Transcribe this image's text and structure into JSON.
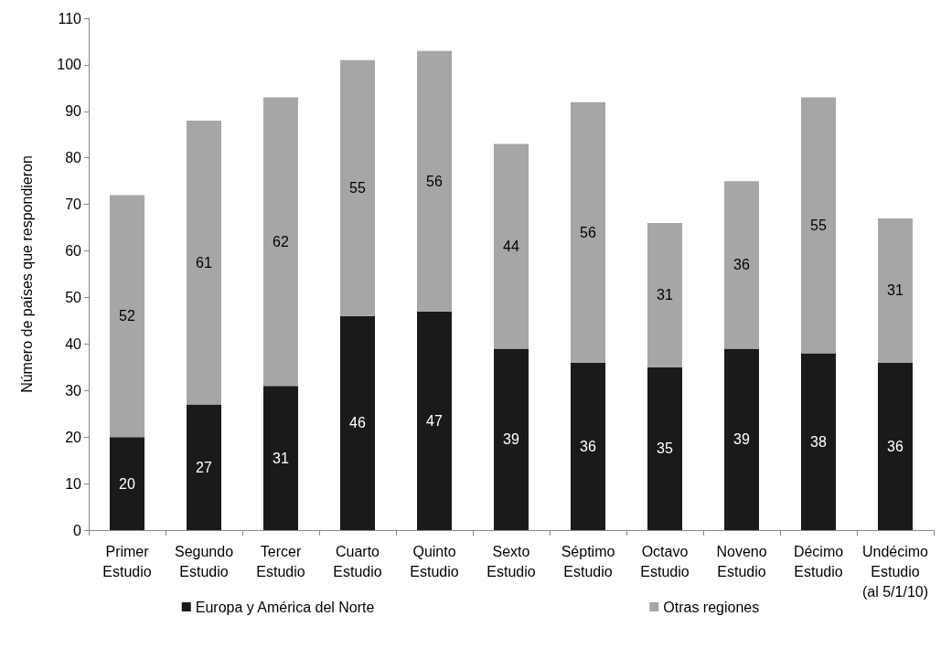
{
  "chart_data": {
    "type": "bar",
    "stacked": true,
    "ylabel": "Número de países que respondieron",
    "categories": [
      "Primer\nEstudio",
      "Segundo\nEstudio",
      "Tercer\nEstudio",
      "Cuarto\nEstudio",
      "Quinto\nEstudio",
      "Sexto\nEstudio",
      "Séptimo\nEstudio",
      "Octavo\nEstudio",
      "Noveno\nEstudio",
      "Décimo\nEstudio",
      "Undécimo\nEstudio\n(al 5/1/10)"
    ],
    "series": [
      {
        "name": "Europa y América del Norte",
        "color": "#1a1a1a",
        "values": [
          20,
          27,
          31,
          46,
          47,
          39,
          36,
          35,
          39,
          38,
          36
        ]
      },
      {
        "name": "Otras regiones",
        "color": "#a6a6a6",
        "values": [
          52,
          61,
          62,
          55,
          56,
          44,
          56,
          31,
          36,
          55,
          31
        ]
      }
    ],
    "ylim": [
      0,
      110
    ],
    "yticks": [
      0,
      10,
      20,
      30,
      40,
      50,
      60,
      70,
      80,
      90,
      100,
      110
    ],
    "grid": false,
    "data_labels": true,
    "legend": "bottom"
  }
}
